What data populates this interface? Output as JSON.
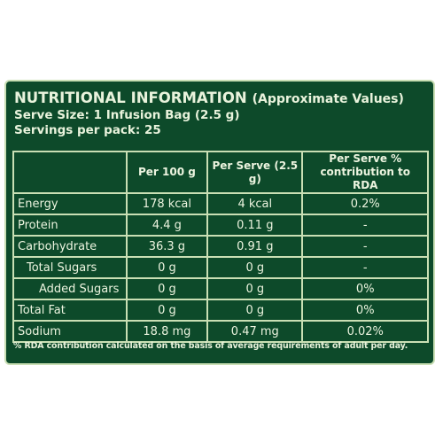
{
  "header": {
    "title": "NUTRITIONAL INFORMATION",
    "subtitle": "(Approximate Values)",
    "serve_size": "Serve Size: 1 Infusion Bag (2.5 g)",
    "servings": "Servings per pack: 25"
  },
  "table": {
    "columns": [
      "",
      "Per 100 g",
      "Per Serve (2.5 g)",
      "Per Serve % contribution to RDA"
    ],
    "rows": [
      {
        "label": "Energy",
        "per100": "178 kcal",
        "perserve": "4 kcal",
        "rda": "0.2%"
      },
      {
        "label": "Protein",
        "per100": "4.4 g",
        "perserve": "0.11 g",
        "rda": "-"
      },
      {
        "label": "Carbohydrate",
        "per100": "36.3 g",
        "perserve": "0.91 g",
        "rda": "-"
      },
      {
        "label": "Total Sugars",
        "per100": "0 g",
        "perserve": "0 g",
        "rda": "-"
      },
      {
        "label": "Added Sugars",
        "per100": "0 g",
        "perserve": "0 g",
        "rda": "0%"
      },
      {
        "label": "Total Fat",
        "per100": "0 g",
        "perserve": "0 g",
        "rda": "0%"
      },
      {
        "label": "Sodium",
        "per100": "18.8 mg",
        "perserve": "0.47 mg",
        "rda": "0.02%"
      }
    ]
  },
  "footnote": "% RDA contribution calculated on the basis of average requirements of adult per day.",
  "colors": {
    "panel": "#0d4a2a",
    "border": "#c9dfb4",
    "text": "#ecf4df"
  }
}
